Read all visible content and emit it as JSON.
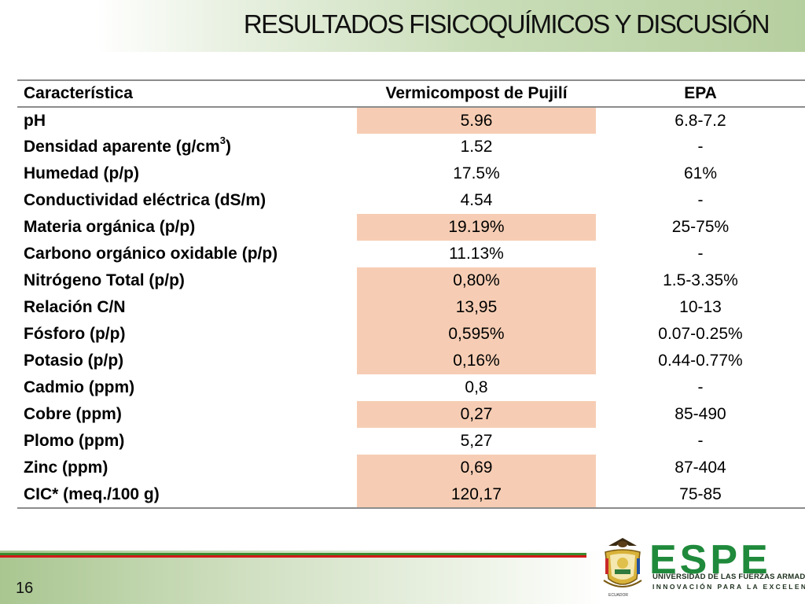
{
  "slide": {
    "title": "RESULTADOS FISICOQUÍMICOS Y DISCUSIÓN",
    "page_number": "16"
  },
  "table": {
    "headers": [
      "Característica",
      "Vermicompost de Pujilí",
      "EPA"
    ],
    "rows": [
      {
        "label": "pH",
        "verm": "5.96",
        "epa": "6.8-7.2",
        "highlight": true
      },
      {
        "label": "Densidad aparente (g/cm",
        "sup": "3",
        "label_end": ")",
        "verm": "1.52",
        "epa": "-",
        "highlight": false
      },
      {
        "label": "Humedad (p/p)",
        "verm": "17.5%",
        "epa": "61%",
        "highlight": false
      },
      {
        "label": "Conductividad eléctrica (dS/m)",
        "verm": "4.54",
        "epa": "-",
        "highlight": false
      },
      {
        "label": "Materia orgánica (p/p)",
        "verm": "19.19%",
        "epa": "25-75%",
        "highlight": true
      },
      {
        "label": "Carbono orgánico oxidable (p/p)",
        "verm": "11.13%",
        "epa": "-",
        "highlight": false
      },
      {
        "label": "Nitrógeno Total (p/p)",
        "verm": "0,80%",
        "epa": "1.5-3.35%",
        "highlight": true
      },
      {
        "label": "Relación C/N",
        "verm": "13,95",
        "epa": "10-13",
        "highlight": true
      },
      {
        "label": "Fósforo (p/p)",
        "verm": "0,595%",
        "epa": "0.07-0.25%",
        "highlight": true
      },
      {
        "label": "Potasio (p/p)",
        "verm": "0,16%",
        "epa": "0.44-0.77%",
        "highlight": true
      },
      {
        "label": "Cadmio (ppm)",
        "verm": "0,8",
        "epa": "-",
        "highlight": false
      },
      {
        "label": "Cobre (ppm)",
        "verm": "0,27",
        "epa": "85-490",
        "highlight": true
      },
      {
        "label": "Plomo (ppm)",
        "verm": "5,27",
        "epa": "-",
        "highlight": false
      },
      {
        "label": "Zinc (ppm)",
        "verm": "0,69",
        "epa": "87-404",
        "highlight": true
      },
      {
        "label": "CIC* (meq./100 g)",
        "verm": "120,17",
        "epa": "75-85",
        "highlight": true
      }
    ]
  },
  "logo": {
    "wordmark": "ESPE",
    "university": "UNIVERSIDAD DE LAS FUERZAS ARMADAS",
    "tagline": "INNOVACIÓN PARA LA EXCELENCIA",
    "crest_label": "ECUADOR",
    "icon": "university-crest-icon"
  },
  "colors": {
    "highlight": "#f6cdb4",
    "brand_green": "#1f8a3b",
    "stripe_red": "#d11a1a"
  }
}
